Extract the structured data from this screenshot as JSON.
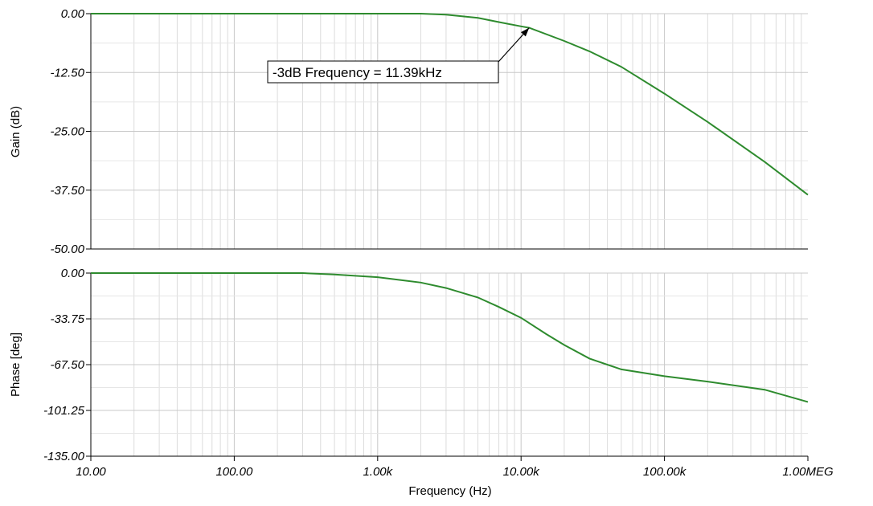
{
  "chart_data": [
    {
      "type": "line",
      "ylabel": "Gain (dB)",
      "xscale": "log",
      "xlim": [
        10,
        1000000
      ],
      "ylim": [
        -50,
        0
      ],
      "yticks": [
        0,
        -12.5,
        -25,
        -37.5,
        -50
      ],
      "ytick_labels": [
        "0.00",
        "-12.50",
        "-25.00",
        "-37.50",
        "-50.00"
      ],
      "grid": true,
      "color": "#2e8b2e",
      "series": [
        {
          "x": [
            10,
            100,
            300,
            1000,
            2000,
            3000,
            5000,
            7000,
            10000,
            11390,
            20000,
            30000,
            50000,
            100000,
            200000,
            500000,
            1000000
          ],
          "y": [
            0,
            0,
            0,
            0,
            0,
            -0.2,
            -0.9,
            -1.8,
            -2.7,
            -3.0,
            -5.8,
            -8.0,
            -11.3,
            -17.0,
            -23.0,
            -31.5,
            -38.5
          ]
        }
      ],
      "annotation": {
        "text": "-3dB Frequency = 11.39kHz",
        "x": 11390,
        "y": -3
      }
    },
    {
      "type": "line",
      "xlabel": "Frequency (Hz)",
      "ylabel": "Phase [deg]",
      "xscale": "log",
      "xlim": [
        10,
        1000000
      ],
      "ylim": [
        -135,
        0
      ],
      "yticks": [
        0,
        -33.75,
        -67.5,
        -101.25,
        -135
      ],
      "ytick_labels": [
        "0.00",
        "-33.75",
        "-67.50",
        "-101.25",
        "-135.00"
      ],
      "xticks": [
        10,
        100,
        1000,
        10000,
        100000,
        1000000
      ],
      "xtick_labels": [
        "10.00",
        "100.00",
        "1.00k",
        "10.00k",
        "100.00k",
        "1.00MEG"
      ],
      "grid": true,
      "color": "#2e8b2e",
      "series": [
        {
          "x": [
            10,
            100,
            300,
            500,
            1000,
            2000,
            3000,
            5000,
            7000,
            10000,
            15000,
            20000,
            30000,
            50000,
            100000,
            200000,
            500000,
            1000000
          ],
          "y": [
            0,
            0,
            0,
            -1,
            -3,
            -7,
            -11,
            -18,
            -25,
            -33,
            -45,
            -53,
            -63,
            -71,
            -76,
            -80,
            -86,
            -95
          ]
        }
      ]
    }
  ]
}
